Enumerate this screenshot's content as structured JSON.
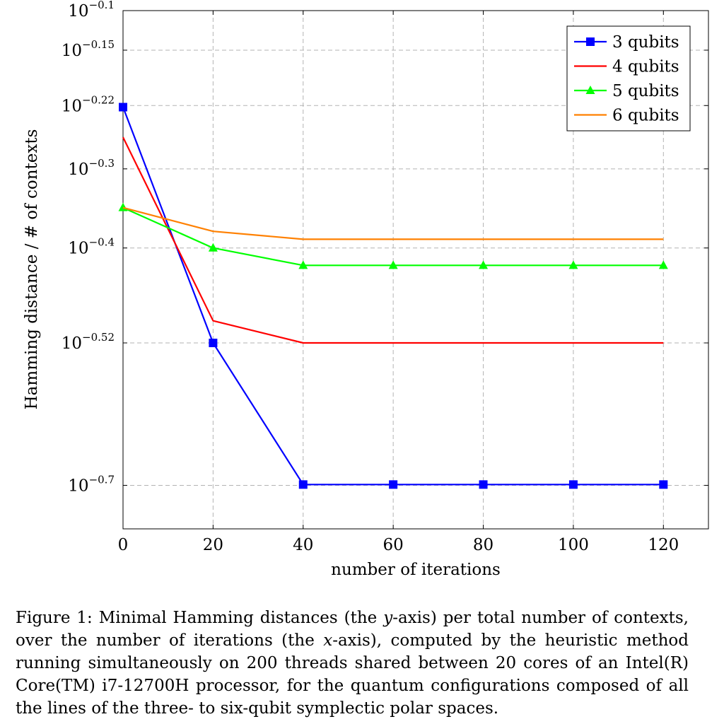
{
  "chart_data": {
    "type": "line",
    "xlabel": "number of iterations",
    "ylabel": "Hamming distance / # of contexts",
    "yscale": "log",
    "xlim": [
      0,
      130
    ],
    "ylim": [
      -0.755,
      -0.1
    ],
    "x_ticks": [
      0,
      20,
      40,
      60,
      80,
      100,
      120
    ],
    "x_tick_labels": [
      "0",
      "20",
      "40",
      "60",
      "80",
      "100",
      "120"
    ],
    "y_ticks": [
      -0.1,
      -0.15,
      -0.22,
      -0.3,
      -0.4,
      -0.52,
      -0.7
    ],
    "y_tick_labels": [
      {
        "base": "10",
        "exp": "−0.1"
      },
      {
        "base": "10",
        "exp": "−0.15"
      },
      {
        "base": "10",
        "exp": "−0.22"
      },
      {
        "base": "10",
        "exp": "−0.3"
      },
      {
        "base": "10",
        "exp": "−0.4"
      },
      {
        "base": "10",
        "exp": "−0.52"
      },
      {
        "base": "10",
        "exp": "−0.7"
      }
    ],
    "grid": true,
    "legend_position": "top-right",
    "x": [
      0,
      20,
      40,
      60,
      80,
      100,
      120
    ],
    "series": [
      {
        "name": "3 qubits",
        "color": "#0000ff",
        "marker": "square",
        "x": [
          0,
          20,
          40,
          60,
          80,
          100,
          120
        ],
        "log10_values": [
          -0.222,
          -0.52,
          -0.699,
          -0.699,
          -0.699,
          -0.699,
          -0.699
        ]
      },
      {
        "name": "4 qubits",
        "color": "#ff0000",
        "marker": "none",
        "x": [
          0,
          20,
          40,
          60,
          80,
          100,
          120
        ],
        "log10_values": [
          -0.26,
          -0.492,
          -0.52,
          -0.52,
          -0.52,
          -0.52,
          -0.52
        ]
      },
      {
        "name": "5 qubits",
        "color": "#00ff00",
        "marker": "triangle",
        "x": [
          0,
          20,
          40,
          60,
          80,
          100,
          120
        ],
        "log10_values": [
          -0.349,
          -0.4,
          -0.422,
          -0.422,
          -0.422,
          -0.422,
          -0.422
        ]
      },
      {
        "name": "6 qubits",
        "color": "#ff8000",
        "marker": "none",
        "x": [
          0,
          20,
          40,
          60,
          80,
          100,
          120
        ],
        "log10_values": [
          -0.349,
          -0.379,
          -0.389,
          -0.389,
          -0.389,
          -0.389,
          -0.389
        ]
      }
    ]
  },
  "caption": {
    "label": "Figure 1:",
    "part1": "Minimal Hamming distances (the ",
    "var_y": "y",
    "part2": "-axis) per total number of contexts, over the number of iterations (the ",
    "var_x": "x",
    "part3": "-axis), computed by the heuristic method running simultaneously on 200 threads shared between 20 cores of an Intel(R) Core(TM) i7-12700H processor, for the quantum configurations composed of all the lines of the three- to six-qubit symplectic polar spaces."
  }
}
